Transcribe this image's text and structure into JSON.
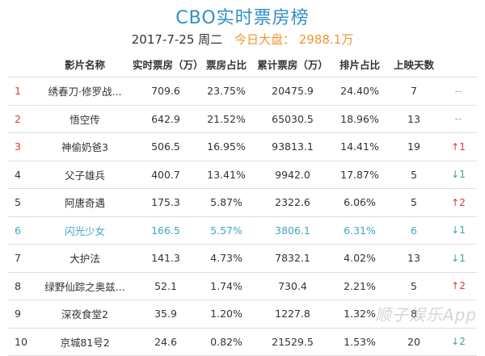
{
  "header": {
    "title": "CBO实时票房榜",
    "date": "2017-7-25 周二",
    "market_label": "今日大盘：",
    "market_value": "2988.1万"
  },
  "table": {
    "columns": [
      "",
      "影片名称",
      "实时票房（万）",
      "票房占比",
      "累计票房（万）",
      "排片占比",
      "上映天数",
      ""
    ],
    "rows": [
      {
        "rank": "1",
        "name": "绣春刀·修罗战...",
        "realtime": "709.6",
        "share": "23.75%",
        "cumulative": "20475.9",
        "schedule": "24.40%",
        "days": "7",
        "trend": "--",
        "trend_type": "none"
      },
      {
        "rank": "2",
        "name": "悟空传",
        "realtime": "642.9",
        "share": "21.52%",
        "cumulative": "65030.5",
        "schedule": "18.96%",
        "days": "13",
        "trend": "--",
        "trend_type": "none"
      },
      {
        "rank": "3",
        "name": "神偷奶爸3",
        "realtime": "506.5",
        "share": "16.95%",
        "cumulative": "93813.1",
        "schedule": "14.41%",
        "days": "19",
        "trend": "↑1",
        "trend_type": "up"
      },
      {
        "rank": "4",
        "name": "父子雄兵",
        "realtime": "400.7",
        "share": "13.41%",
        "cumulative": "9942.0",
        "schedule": "17.87%",
        "days": "5",
        "trend": "↓1",
        "trend_type": "down"
      },
      {
        "rank": "5",
        "name": "阿唐奇遇",
        "realtime": "175.3",
        "share": "5.87%",
        "cumulative": "2322.6",
        "schedule": "6.06%",
        "days": "5",
        "trend": "↑2",
        "trend_type": "up"
      },
      {
        "rank": "6",
        "name": "闪光少女",
        "realtime": "166.5",
        "share": "5.57%",
        "cumulative": "3806.1",
        "schedule": "6.31%",
        "days": "6",
        "trend": "↓1",
        "trend_type": "down",
        "highlight": true
      },
      {
        "rank": "7",
        "name": "大护法",
        "realtime": "141.3",
        "share": "4.73%",
        "cumulative": "7832.1",
        "schedule": "4.02%",
        "days": "13",
        "trend": "↓1",
        "trend_type": "down"
      },
      {
        "rank": "8",
        "name": "绿野仙踪之奥兹...",
        "realtime": "52.1",
        "share": "1.74%",
        "cumulative": "730.4",
        "schedule": "2.21%",
        "days": "5",
        "trend": "↑2",
        "trend_type": "up"
      },
      {
        "rank": "9",
        "name": "深夜食堂2",
        "realtime": "35.9",
        "share": "1.20%",
        "cumulative": "1227.8",
        "schedule": "1.32%",
        "days": "8",
        "trend": "",
        "trend_type": "none"
      },
      {
        "rank": "10",
        "name": "京城81号2",
        "realtime": "24.6",
        "share": "0.82%",
        "cumulative": "21529.5",
        "schedule": "1.53%",
        "days": "20",
        "trend": "↓2",
        "trend_type": "down"
      }
    ]
  },
  "watermark": "顺子娱乐App",
  "colors": {
    "title": "#2f8fc8",
    "market": "#f0962e",
    "rank_top3": "#d93a3a",
    "trend_up": "#d93a3a",
    "trend_down": "#37a49b",
    "highlight_row": "#3fa6c4"
  }
}
